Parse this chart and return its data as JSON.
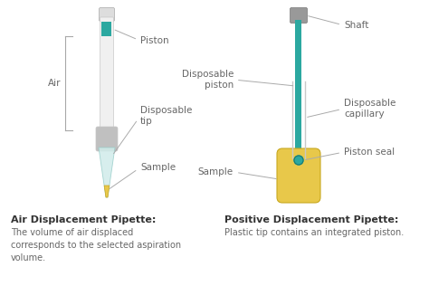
{
  "bg_color": "#ffffff",
  "text_color": "#333333",
  "label_color": "#666666",
  "teal_color": "#2ba8a0",
  "gray_light": "#c8c8c8",
  "gray_mid": "#a8a8a8",
  "gray_dark": "#888888",
  "yellow_color": "#e8c84a",
  "light_teal": "#d0ecea",
  "line_color": "#aaaaaa",
  "left_title": "Air Displacement Pipette:",
  "left_desc1": "The volume of air displaced",
  "left_desc2": "corresponds to the selected aspiration",
  "left_desc3": "volume.",
  "right_title": "Positive Displacement Pipette:",
  "right_desc": "Plastic tip contains an integrated piston."
}
